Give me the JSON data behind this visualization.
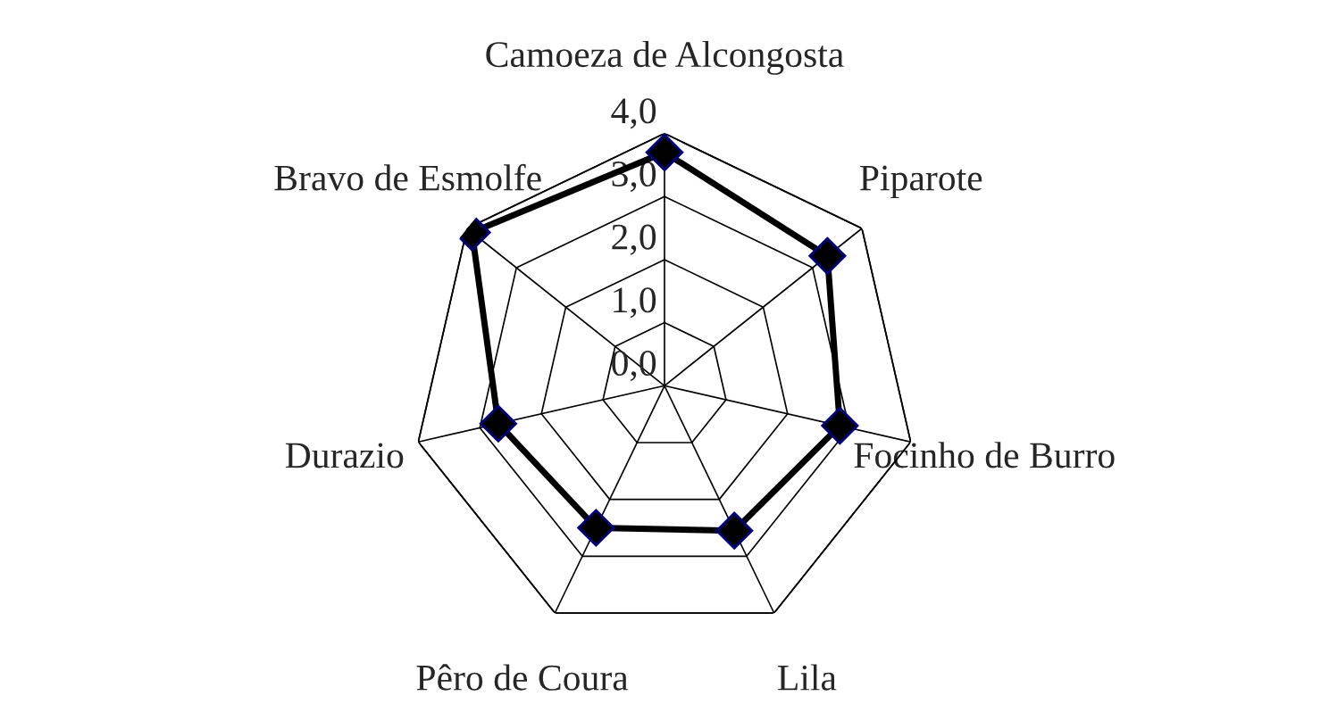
{
  "chart_data": {
    "type": "radar",
    "categories": [
      "Camoeza de Alcongosta",
      "Piparote",
      "Focinho de Burro",
      "Lila",
      "Pêro de Coura",
      "Durazio",
      "Bravo de Esmolfe"
    ],
    "series": [
      {
        "color": "#000000",
        "values": [
          3.7,
          3.3,
          2.85,
          2.55,
          2.5,
          2.7,
          3.9
        ]
      }
    ],
    "ylim": [
      0,
      4
    ],
    "yticks": [
      {
        "value": 0,
        "label": "0,0"
      },
      {
        "value": 1,
        "label": "1,0"
      },
      {
        "value": 2,
        "label": "2,0"
      },
      {
        "value": 3,
        "label": "3,0"
      },
      {
        "value": 4,
        "label": "4,0"
      }
    ],
    "grid": true,
    "marker": "diamond",
    "line_style": "solid"
  }
}
